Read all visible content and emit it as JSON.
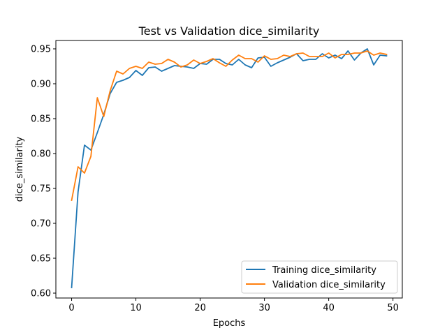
{
  "chart_data": {
    "type": "line",
    "title": "Test vs Validation dice_similarity",
    "xlabel": "Epochs",
    "ylabel": "dice_similarity",
    "xlim": [
      -2.45,
      51.45
    ],
    "ylim": [
      0.593,
      0.962
    ],
    "xticks": [
      0,
      10,
      20,
      30,
      40,
      50
    ],
    "yticks": [
      0.6,
      0.65,
      0.7,
      0.75,
      0.8,
      0.85,
      0.9,
      0.95
    ],
    "ytick_labels": [
      "0.60",
      "0.65",
      "0.70",
      "0.75",
      "0.80",
      "0.85",
      "0.90",
      "0.95"
    ],
    "grid": false,
    "legend_position": "lower-right",
    "x": [
      0,
      1,
      2,
      3,
      4,
      5,
      6,
      7,
      8,
      9,
      10,
      11,
      12,
      13,
      14,
      15,
      16,
      17,
      18,
      19,
      20,
      21,
      22,
      23,
      24,
      25,
      26,
      27,
      28,
      29,
      30,
      31,
      32,
      33,
      34,
      35,
      36,
      37,
      38,
      39,
      40,
      41,
      42,
      43,
      44,
      45,
      46,
      47,
      48,
      49
    ],
    "series": [
      {
        "name": "Training dice_similarity",
        "color": "#1f77b4",
        "values": [
          0.608,
          0.745,
          0.812,
          0.805,
          0.83,
          0.856,
          0.886,
          0.902,
          0.905,
          0.909,
          0.919,
          0.912,
          0.923,
          0.924,
          0.918,
          0.922,
          0.926,
          0.925,
          0.924,
          0.922,
          0.929,
          0.928,
          0.935,
          0.935,
          0.929,
          0.927,
          0.935,
          0.927,
          0.923,
          0.937,
          0.938,
          0.925,
          0.93,
          0.934,
          0.938,
          0.943,
          0.933,
          0.935,
          0.935,
          0.943,
          0.937,
          0.941,
          0.936,
          0.947,
          0.934,
          0.944,
          0.95,
          0.927,
          0.941,
          0.94
        ]
      },
      {
        "name": "Validation dice_similarity",
        "color": "#ff7f0e",
        "values": [
          0.733,
          0.781,
          0.772,
          0.796,
          0.88,
          0.853,
          0.89,
          0.918,
          0.914,
          0.922,
          0.925,
          0.922,
          0.931,
          0.928,
          0.929,
          0.935,
          0.931,
          0.924,
          0.927,
          0.934,
          0.929,
          0.932,
          0.936,
          0.93,
          0.925,
          0.934,
          0.941,
          0.936,
          0.936,
          0.931,
          0.94,
          0.935,
          0.936,
          0.941,
          0.939,
          0.943,
          0.944,
          0.939,
          0.939,
          0.939,
          0.944,
          0.937,
          0.942,
          0.942,
          0.944,
          0.944,
          0.947,
          0.941,
          0.944,
          0.942
        ]
      }
    ]
  }
}
